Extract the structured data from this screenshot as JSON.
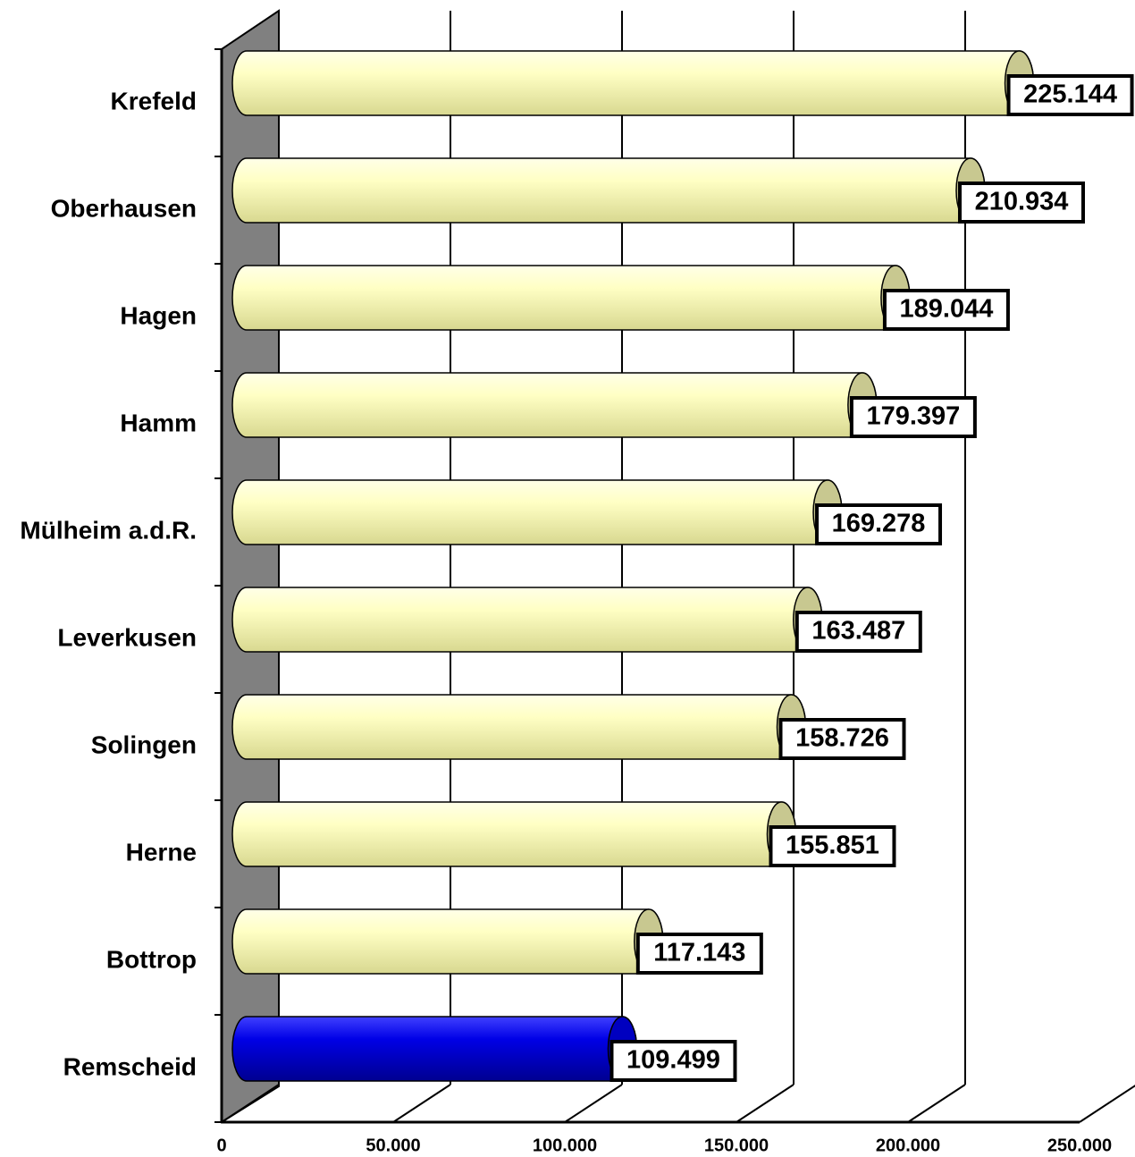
{
  "chart_data": {
    "type": "bar",
    "orientation": "horizontal",
    "categories": [
      "Krefeld",
      "Oberhausen",
      "Hagen",
      "Hamm",
      "Mülheim a.d.R.",
      "Leverkusen",
      "Solingen",
      "Herne",
      "Bottrop",
      "Remscheid"
    ],
    "values": [
      225144,
      210934,
      189044,
      179397,
      169278,
      163487,
      158726,
      155851,
      117143,
      109499
    ],
    "value_labels": [
      "225.144",
      "210.934",
      "189.044",
      "179.397",
      "169.278",
      "163.487",
      "158.726",
      "155.851",
      "117.143",
      "109.499"
    ],
    "colors": [
      "#ffffb8",
      "#ffffb8",
      "#ffffb8",
      "#ffffb8",
      "#ffffb8",
      "#ffffb8",
      "#ffffb8",
      "#ffffb8",
      "#ffffb8",
      "#0000e6"
    ],
    "xlim": [
      0,
      250000
    ],
    "xticks": [
      0,
      {
        "value": 50000,
        "label": "50.000"
      },
      {
        "value": 100000,
        "label": "100.000"
      },
      {
        "value": 150000,
        "label": "150.000"
      },
      {
        "value": 200000,
        "label": "200.000"
      },
      {
        "value": 250000,
        "label": "250.000"
      }
    ],
    "grid": true
  }
}
